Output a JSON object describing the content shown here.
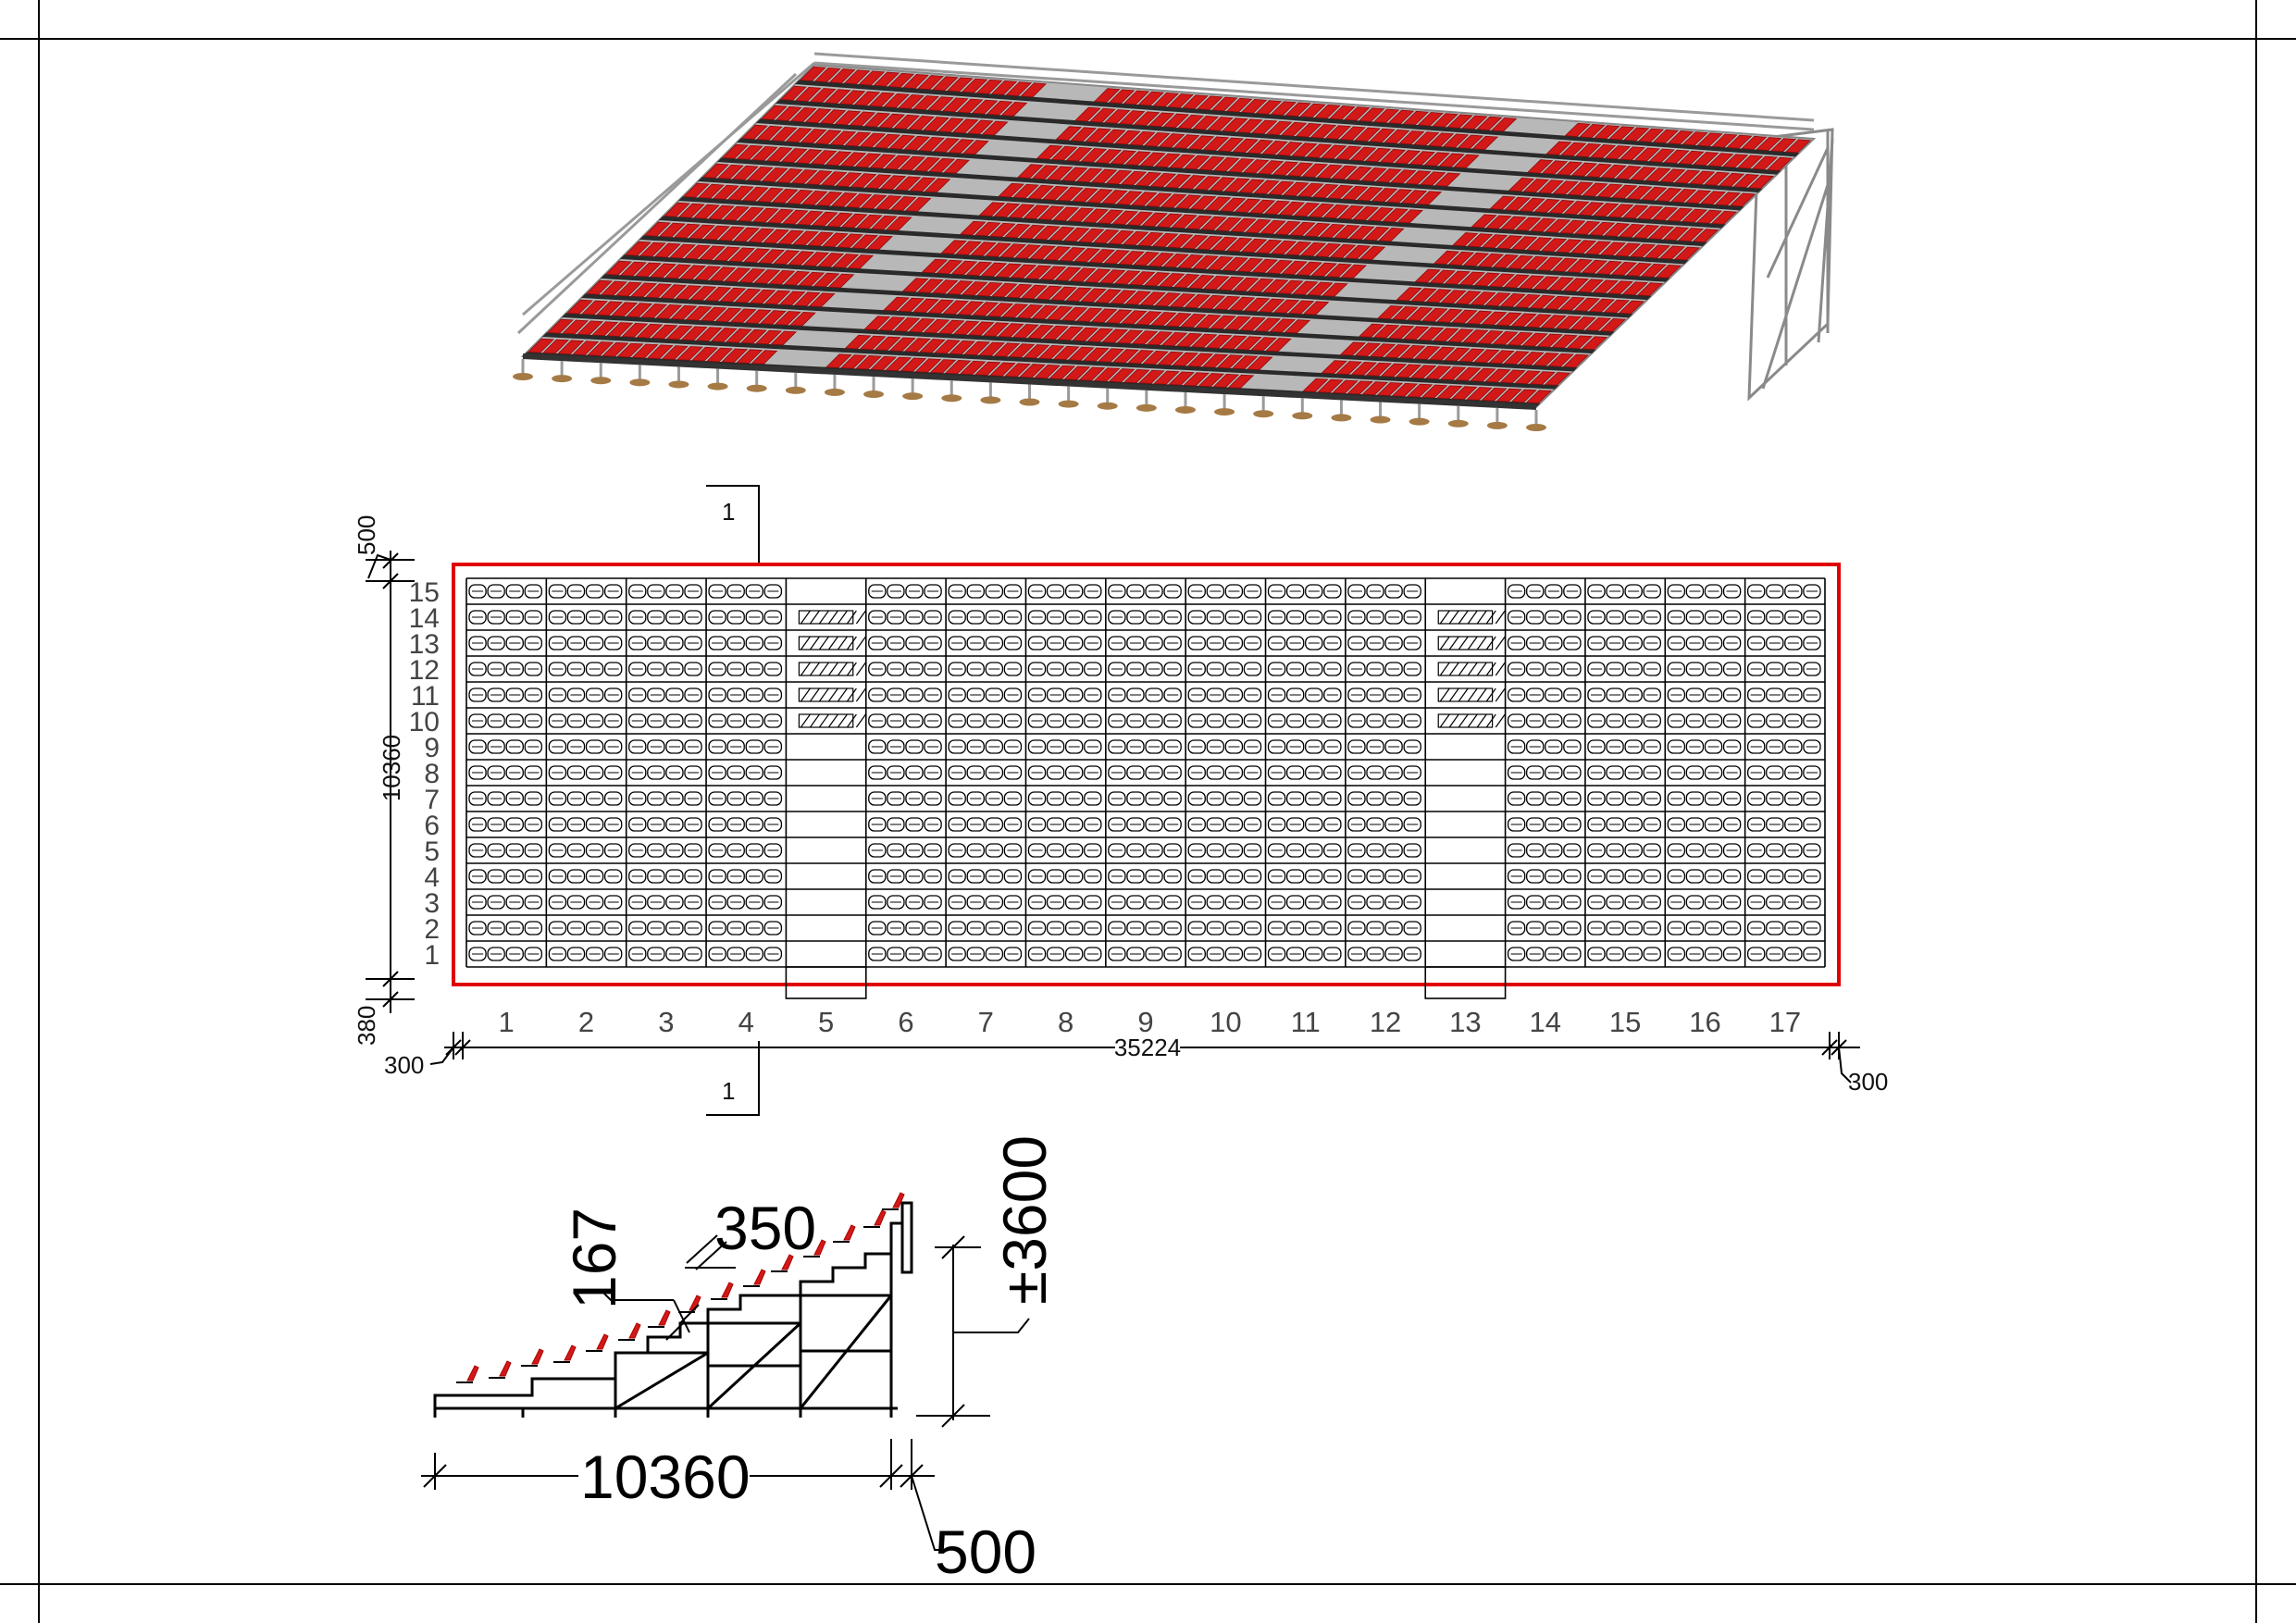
{
  "drawing": {
    "render_label": "",
    "plan": {
      "section_mark": "1",
      "rows": [
        "1",
        "2",
        "3",
        "4",
        "5",
        "6",
        "7",
        "8",
        "9",
        "10",
        "11",
        "12",
        "13",
        "14",
        "15"
      ],
      "columns": [
        "1",
        "2",
        "3",
        "4",
        "5",
        "6",
        "7",
        "8",
        "9",
        "10",
        "11",
        "12",
        "13",
        "14",
        "15",
        "16",
        "17"
      ],
      "aisle_columns": [
        5,
        13
      ],
      "outline_color": "#e00000",
      "dimensions": {
        "depth": "10360",
        "front_margin": "380",
        "back_margin": "500",
        "width": "35224",
        "left_margin": "300",
        "right_margin": "300"
      }
    },
    "section": {
      "dimensions": {
        "step_height": "167",
        "step_depth": "350",
        "height": "±3600",
        "depth": "10360",
        "back": "500"
      }
    },
    "colors": {
      "seat": "#d31818",
      "frame": "#9a9a9a",
      "foot": "#a57a45",
      "walkway": "#2a2a2a"
    }
  }
}
